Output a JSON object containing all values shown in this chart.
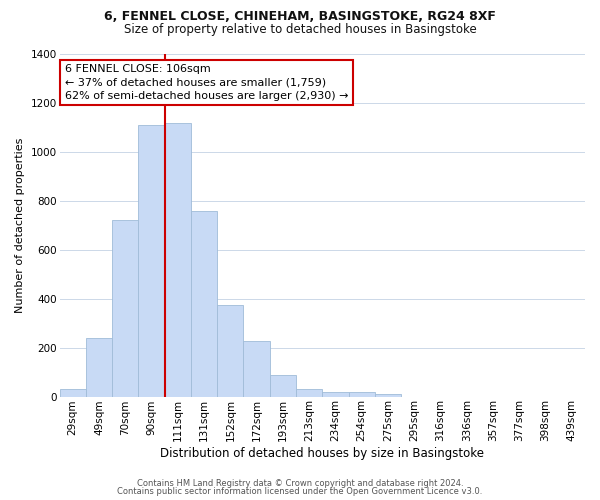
{
  "title_line1": "6, FENNEL CLOSE, CHINEHAM, BASINGSTOKE, RG24 8XF",
  "title_line2": "Size of property relative to detached houses in Basingstoke",
  "xlabel": "Distribution of detached houses by size in Basingstoke",
  "ylabel": "Number of detached properties",
  "bar_labels": [
    "29sqm",
    "49sqm",
    "70sqm",
    "90sqm",
    "111sqm",
    "131sqm",
    "152sqm",
    "172sqm",
    "193sqm",
    "213sqm",
    "234sqm",
    "254sqm",
    "275sqm",
    "295sqm",
    "316sqm",
    "336sqm",
    "357sqm",
    "377sqm",
    "398sqm",
    "439sqm"
  ],
  "bar_values": [
    30,
    240,
    720,
    1110,
    1120,
    760,
    375,
    228,
    90,
    30,
    20,
    20,
    10,
    0,
    0,
    0,
    0,
    0,
    0,
    0
  ],
  "bar_color": "#c8daf5",
  "bar_edge_color": "#a0bcd8",
  "vline_color": "#cc0000",
  "annotation_text": "6 FENNEL CLOSE: 106sqm\n← 37% of detached houses are smaller (1,759)\n62% of semi-detached houses are larger (2,930) →",
  "annotation_box_edge": "#cc0000",
  "annotation_box_facecolor": "#ffffff",
  "ylim": [
    0,
    1400
  ],
  "yticks": [
    0,
    200,
    400,
    600,
    800,
    1000,
    1200,
    1400
  ],
  "footer_line1": "Contains HM Land Registry data © Crown copyright and database right 2024.",
  "footer_line2": "Contains public sector information licensed under the Open Government Licence v3.0.",
  "background_color": "#ffffff",
  "grid_color": "#ccd8e8",
  "title_fontsize": 9,
  "subtitle_fontsize": 8.5,
  "ylabel_fontsize": 8,
  "xlabel_fontsize": 8.5,
  "tick_fontsize": 7.5,
  "annotation_fontsize": 8,
  "footer_fontsize": 6,
  "vline_x_index": 4
}
